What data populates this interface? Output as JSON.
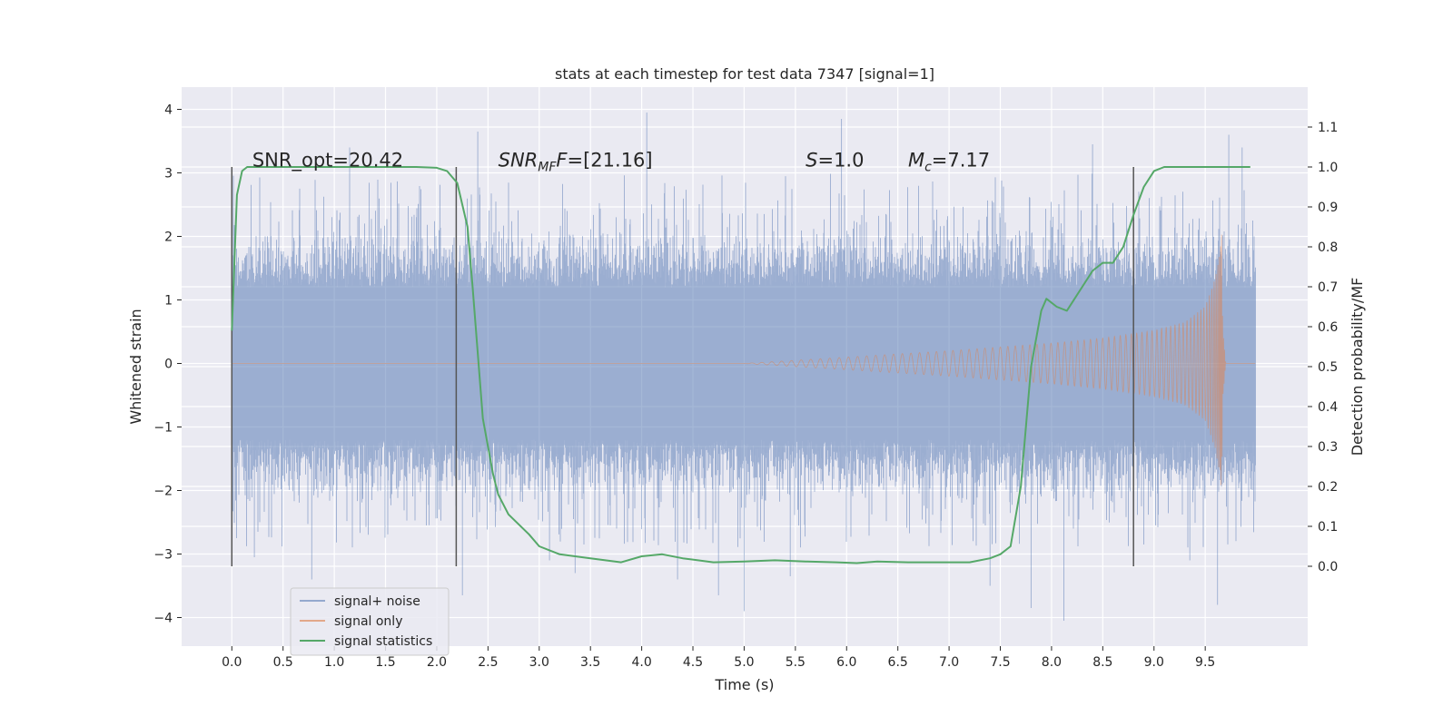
{
  "chart_data": {
    "type": "line",
    "title": "stats at each timestep for test data 7347 [signal=1]",
    "xlabel": "Time (s)",
    "ylabel": "Whitened strain",
    "y2label": "Detection probability/MF",
    "xlim": [
      -0.49,
      10.5
    ],
    "ylim": [
      -4.45,
      4.35
    ],
    "y2lim": [
      -0.2,
      1.2
    ],
    "x_ticks": [
      0.0,
      0.5,
      1.0,
      1.5,
      2.0,
      2.5,
      3.0,
      3.5,
      4.0,
      4.5,
      5.0,
      5.5,
      6.0,
      6.5,
      7.0,
      7.5,
      8.0,
      8.5,
      9.0,
      9.5
    ],
    "x_tick_labels": [
      "0.0",
      "0.5",
      "1.0",
      "1.5",
      "2.0",
      "2.5",
      "3.0",
      "3.5",
      "4.0",
      "4.5",
      "5.0",
      "5.5",
      "6.0",
      "6.5",
      "7.0",
      "7.5",
      "8.0",
      "8.5",
      "9.0",
      "9.5"
    ],
    "y_ticks": [
      4,
      3,
      2,
      1,
      0,
      -1,
      -2,
      -3,
      -4
    ],
    "y_tick_labels": [
      "4",
      "3",
      "2",
      "1",
      "0",
      "−1",
      "−2",
      "−3",
      "−4"
    ],
    "y2_ticks": [
      1.1,
      1.0,
      0.9,
      0.8,
      0.7,
      0.6,
      0.5,
      0.4,
      0.3,
      0.2,
      0.1,
      0.0
    ],
    "y2_tick_labels": [
      "1.1",
      "1.0",
      "0.9",
      "0.8",
      "0.7",
      "0.6",
      "0.5",
      "0.4",
      "0.3",
      "0.2",
      "0.1",
      "0.0"
    ],
    "grid": true,
    "legend_position": "lower-left",
    "annotations": [
      {
        "text": "SNR_opt=20.42",
        "x": 0.2,
        "y": 3.1
      },
      {
        "main": "SNR",
        "sub": "MF",
        "rest": "F=[21.16]",
        "x": 2.6,
        "y": 3.1
      },
      {
        "main": "S",
        "rest": "=1.0",
        "x": 5.6,
        "y": 3.1
      },
      {
        "main": "M",
        "sub": "c",
        "rest": "=7.17",
        "x": 6.6,
        "y": 3.1
      }
    ],
    "vlines": {
      "x": [
        0.0,
        2.19,
        8.8
      ],
      "ymin": 0.0,
      "ymax": 1.0
    },
    "series": [
      {
        "name": "signal+ noise",
        "color": "#4c72b0",
        "t_range": [
          0.0,
          9.99
        ],
        "envelope_p2p": [
          3.8,
          3.8,
          3.8,
          3.8,
          3.8,
          3.8,
          3.8,
          3.8,
          3.8,
          3.8,
          3.8
        ],
        "extremes": [
          {
            "x": 0.22,
            "y": -3.05
          },
          {
            "x": 0.78,
            "y": -3.4
          },
          {
            "x": 1.15,
            "y": 3.4
          },
          {
            "x": 2.25,
            "y": -3.65
          },
          {
            "x": 2.4,
            "y": 3.65
          },
          {
            "x": 3.1,
            "y": -3.1
          },
          {
            "x": 3.35,
            "y": -3.3
          },
          {
            "x": 4.05,
            "y": 3.95
          },
          {
            "x": 4.35,
            "y": -3.4
          },
          {
            "x": 4.75,
            "y": -3.65
          },
          {
            "x": 5.0,
            "y": -3.9
          },
          {
            "x": 5.45,
            "y": -3.35
          },
          {
            "x": 5.95,
            "y": 3.85
          },
          {
            "x": 7.4,
            "y": -3.5
          },
          {
            "x": 7.8,
            "y": -3.85
          },
          {
            "x": 8.12,
            "y": -4.05
          },
          {
            "x": 8.4,
            "y": 3.45
          },
          {
            "x": 9.35,
            "y": -3.1
          },
          {
            "x": 9.62,
            "y": -3.8
          },
          {
            "x": 9.73,
            "y": 3.6
          },
          {
            "x": 9.86,
            "y": 3.4
          }
        ]
      },
      {
        "name": "signal only",
        "color": "#dd8452",
        "envelope": {
          "x": [
            0.0,
            5.0,
            5.5,
            6.0,
            6.5,
            7.0,
            7.5,
            8.0,
            8.5,
            9.0,
            9.3,
            9.5,
            9.6,
            9.65,
            9.66,
            9.67,
            9.7,
            10.0
          ],
          "amp": [
            0.0,
            0.0,
            0.05,
            0.1,
            0.15,
            0.2,
            0.26,
            0.32,
            0.4,
            0.52,
            0.65,
            0.9,
            1.35,
            1.85,
            2.2,
            0.6,
            0.0,
            0.0
          ]
        }
      },
      {
        "name": "signal statistics",
        "color": "#55a868",
        "axis": "right",
        "x": [
          0.0,
          0.05,
          0.1,
          0.15,
          0.3,
          0.6,
          1.0,
          1.5,
          1.8,
          2.0,
          2.1,
          2.2,
          2.3,
          2.35,
          2.45,
          2.55,
          2.6,
          2.7,
          2.9,
          3.0,
          3.2,
          3.5,
          3.8,
          4.0,
          4.2,
          4.4,
          4.7,
          5.0,
          5.3,
          5.6,
          5.9,
          6.1,
          6.3,
          6.6,
          6.9,
          7.2,
          7.4,
          7.5,
          7.6,
          7.7,
          7.8,
          7.9,
          7.95,
          8.05,
          8.15,
          8.2,
          8.3,
          8.4,
          8.5,
          8.6,
          8.7,
          8.8,
          8.9,
          9.0,
          9.1,
          9.2,
          9.4,
          9.7,
          9.94
        ],
        "values": [
          0.59,
          0.93,
          0.99,
          1.0,
          1.0,
          1.0,
          1.0,
          1.0,
          1.0,
          0.998,
          0.99,
          0.96,
          0.85,
          0.7,
          0.37,
          0.23,
          0.18,
          0.13,
          0.08,
          0.05,
          0.03,
          0.02,
          0.01,
          0.025,
          0.03,
          0.02,
          0.01,
          0.012,
          0.015,
          0.012,
          0.01,
          0.008,
          0.012,
          0.01,
          0.01,
          0.01,
          0.02,
          0.03,
          0.05,
          0.2,
          0.5,
          0.64,
          0.67,
          0.65,
          0.64,
          0.66,
          0.7,
          0.74,
          0.76,
          0.76,
          0.8,
          0.88,
          0.95,
          0.99,
          1.0,
          1.0,
          1.0,
          1.0,
          1.0
        ]
      }
    ]
  }
}
